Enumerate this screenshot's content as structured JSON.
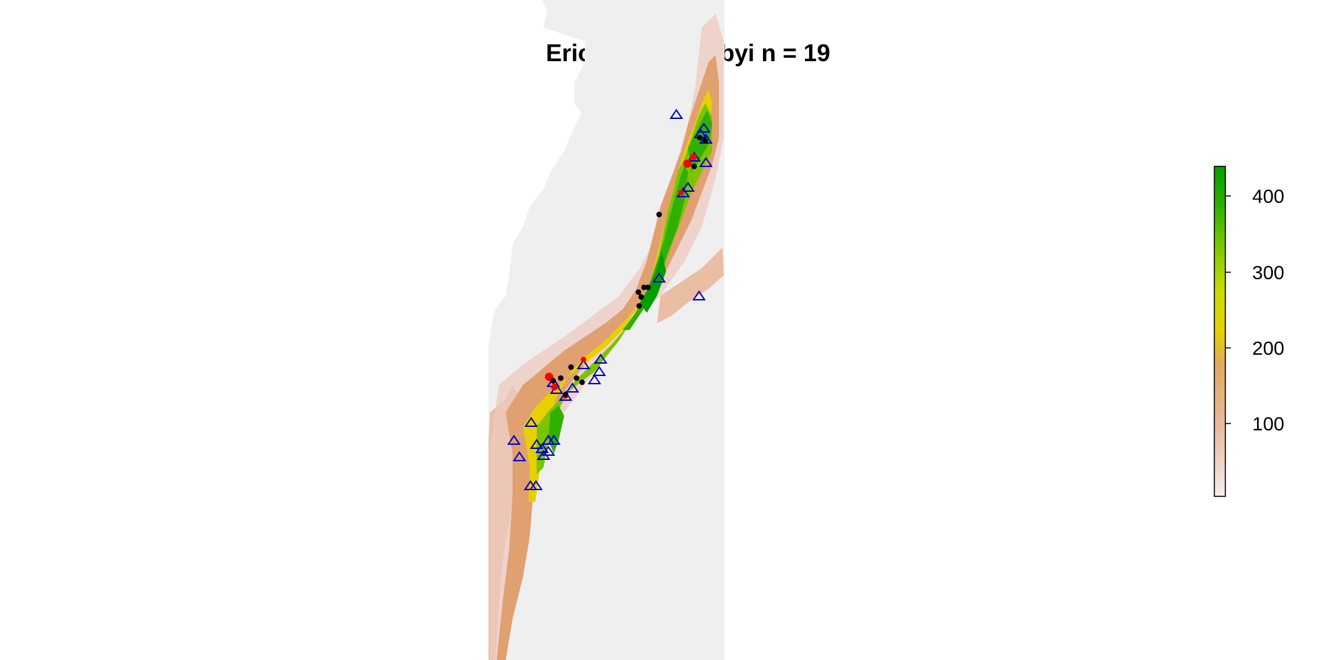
{
  "title": "Eriocnemis derbyi n = 19",
  "legend": {
    "ticks": [
      "100",
      "200",
      "300",
      "400"
    ],
    "tick_values": [
      100,
      200,
      300,
      400
    ],
    "value_range": [
      0,
      440
    ],
    "colors": [
      "#f2e6e6",
      "#e8b89a",
      "#e0a070",
      "#e8c820",
      "#b8d800",
      "#80c800",
      "#30b000",
      "#00a000"
    ]
  },
  "symbols": {
    "triangle_color": "#0000cc",
    "red_point_color": "#ff0000",
    "black_point_color": "#000000"
  }
}
